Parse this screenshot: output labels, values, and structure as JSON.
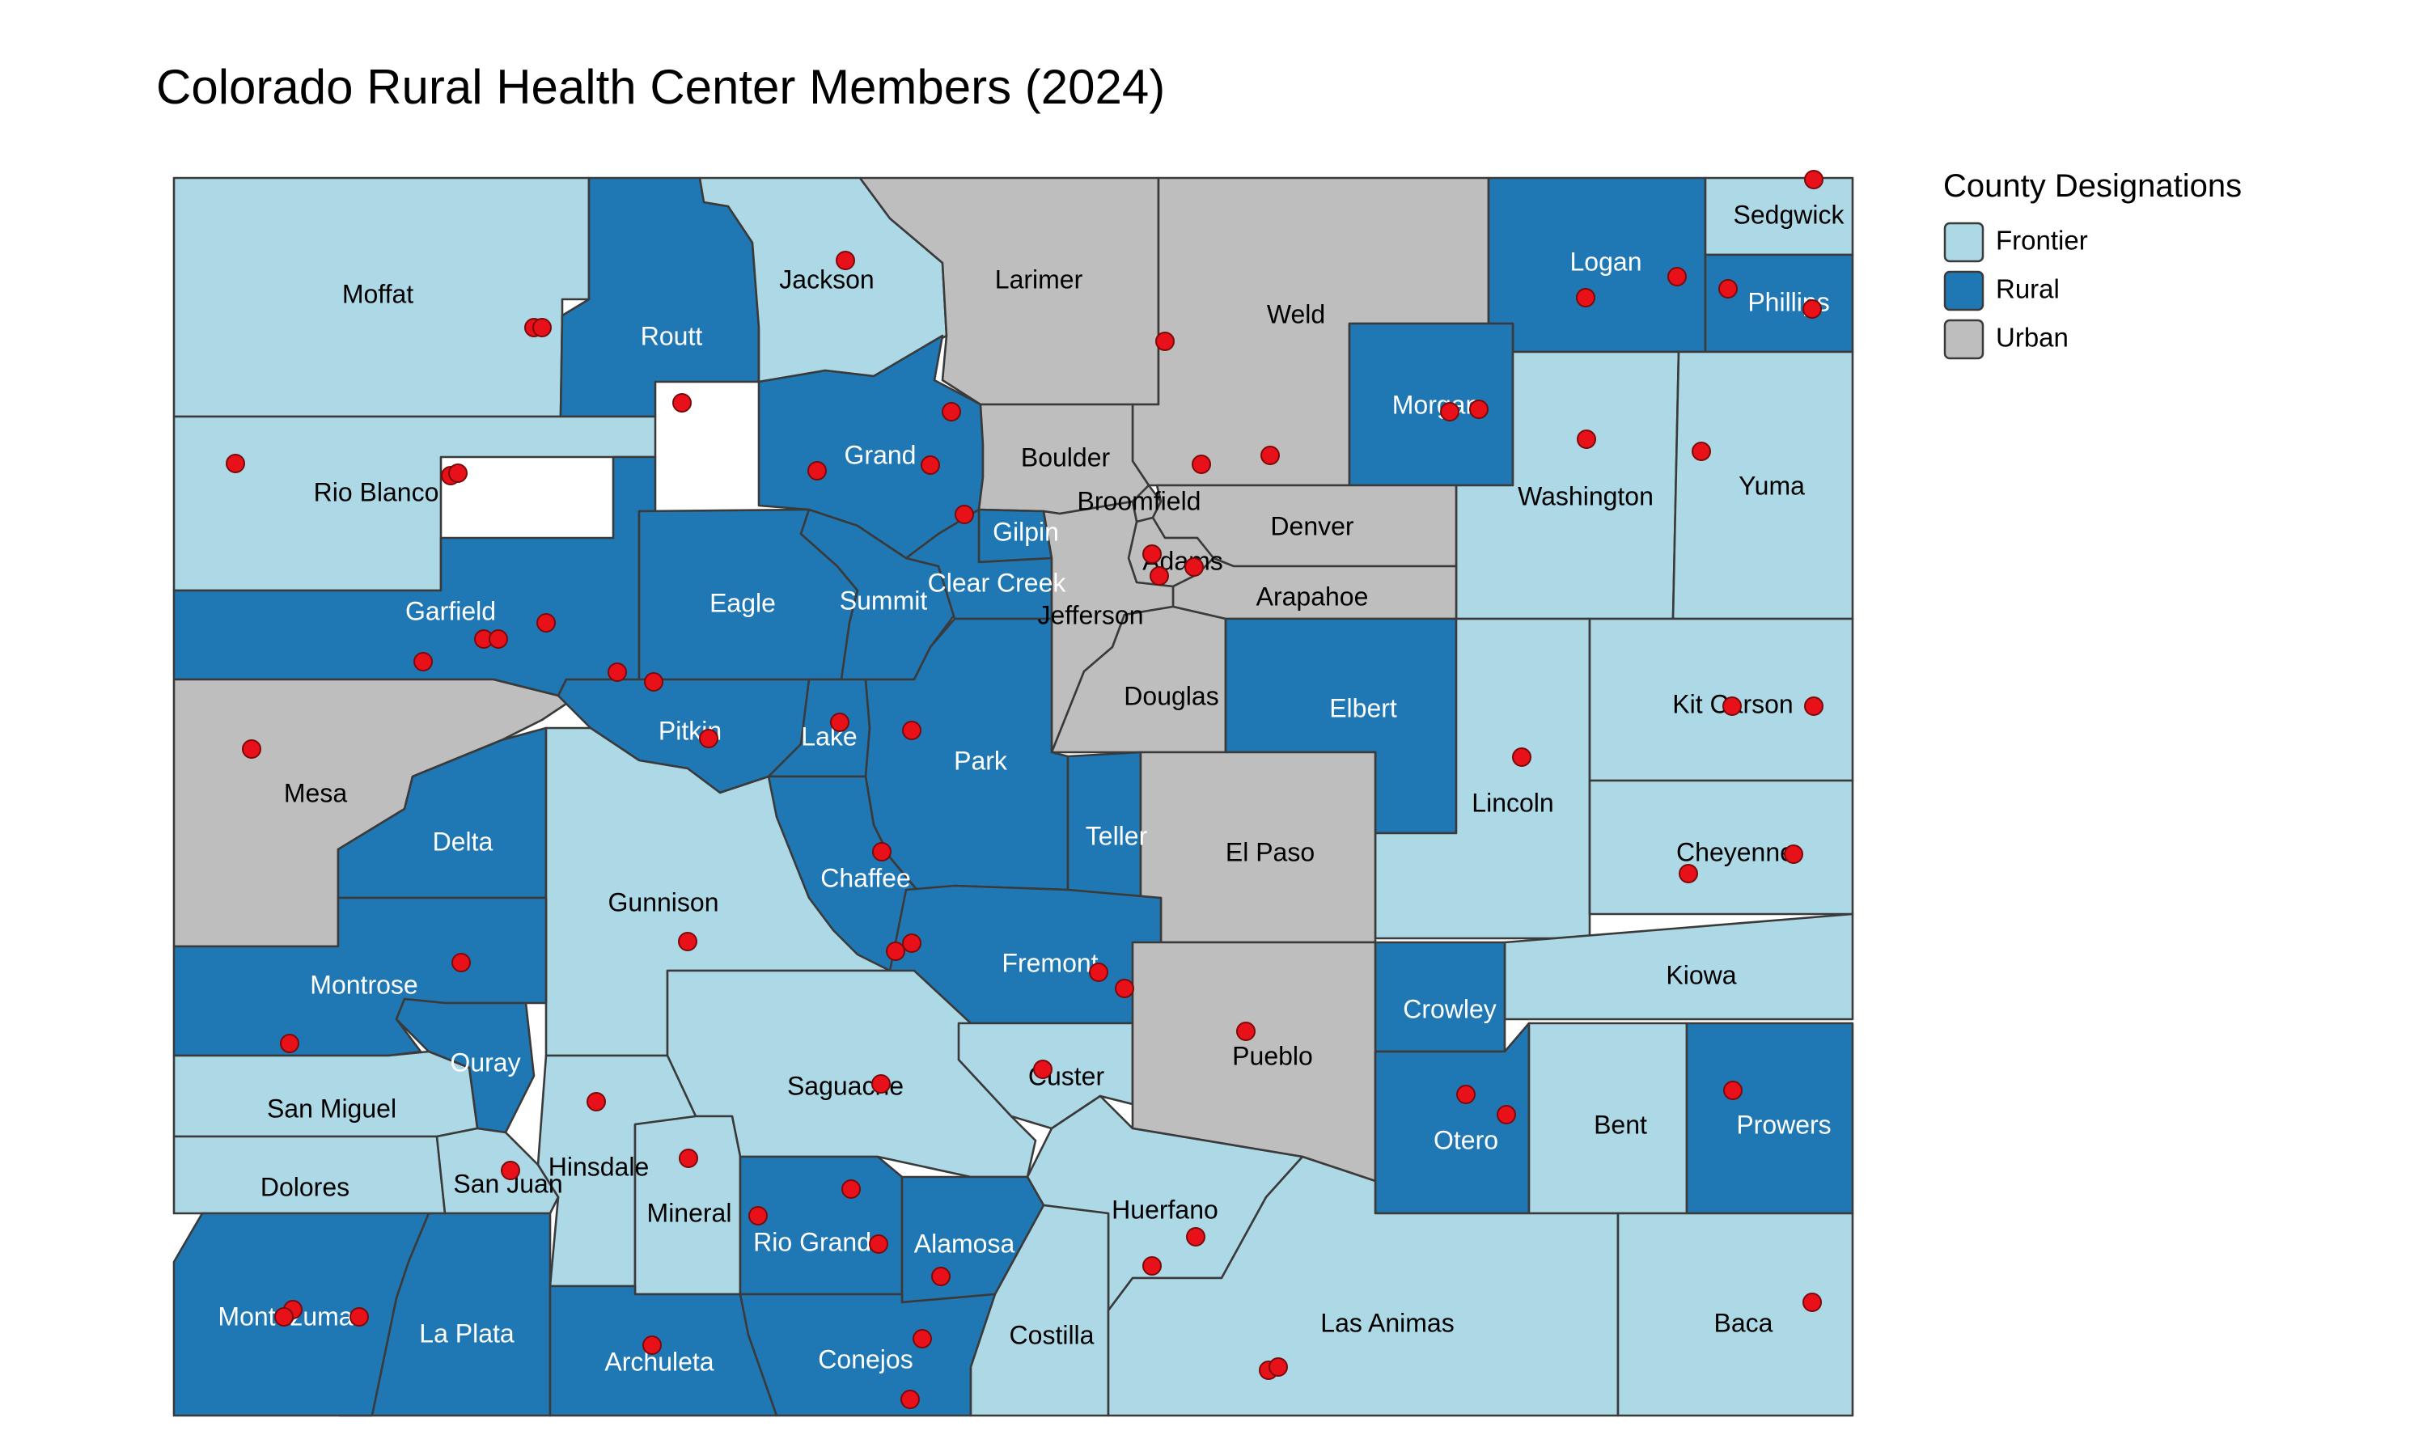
{
  "title": "Colorado Rural Health Center Members (2024)",
  "legend": {
    "title": "County Designations",
    "items": [
      {
        "key": "Frontier",
        "label": "Frontier",
        "color": "#add8e6"
      },
      {
        "key": "Rural",
        "label": "Rural",
        "color": "#1f78b4"
      },
      {
        "key": "Urban",
        "label": "Urban",
        "color": "#bebebe"
      }
    ]
  },
  "colors": {
    "Frontier": "#add8e6",
    "Rural": "#1f78b4",
    "Urban": "#bebebe",
    "point": "#e8111a"
  },
  "counties": [
    {
      "id": "moffat",
      "name": "Moffat",
      "designation": "Frontier"
    },
    {
      "id": "routt",
      "name": "Routt",
      "designation": "Rural"
    },
    {
      "id": "jackson",
      "name": "Jackson",
      "designation": "Frontier"
    },
    {
      "id": "larimer",
      "name": "Larimer",
      "designation": "Urban"
    },
    {
      "id": "weld",
      "name": "Weld",
      "designation": "Urban"
    },
    {
      "id": "logan",
      "name": "Logan",
      "designation": "Rural"
    },
    {
      "id": "sedgwick",
      "name": "Sedgwick",
      "designation": "Frontier"
    },
    {
      "id": "phillips",
      "name": "Phillips",
      "designation": "Rural"
    },
    {
      "id": "rio-blanco",
      "name": "Rio Blanco",
      "designation": "Frontier"
    },
    {
      "id": "grand",
      "name": "Grand",
      "designation": "Rural"
    },
    {
      "id": "boulder",
      "name": "Boulder",
      "designation": "Urban"
    },
    {
      "id": "broomfield",
      "name": "Broomfield",
      "designation": "Urban"
    },
    {
      "id": "morgan",
      "name": "Morgan",
      "designation": "Rural"
    },
    {
      "id": "washington",
      "name": "Washington",
      "designation": "Frontier"
    },
    {
      "id": "yuma",
      "name": "Yuma",
      "designation": "Frontier"
    },
    {
      "id": "garfield",
      "name": "Garfield",
      "designation": "Rural"
    },
    {
      "id": "eagle",
      "name": "Eagle",
      "designation": "Rural"
    },
    {
      "id": "summit",
      "name": "Summit",
      "designation": "Rural"
    },
    {
      "id": "gilpin",
      "name": "Gilpin",
      "designation": "Rural"
    },
    {
      "id": "clear-creek",
      "name": "Clear Creek",
      "designation": "Rural"
    },
    {
      "id": "denver",
      "name": "Denver",
      "designation": "Urban"
    },
    {
      "id": "adams",
      "name": "Adams",
      "designation": "Urban"
    },
    {
      "id": "arapahoe",
      "name": "Arapahoe",
      "designation": "Urban"
    },
    {
      "id": "jefferson",
      "name": "Jefferson",
      "designation": "Urban"
    },
    {
      "id": "mesa",
      "name": "Mesa",
      "designation": "Urban"
    },
    {
      "id": "pitkin",
      "name": "Pitkin",
      "designation": "Rural"
    },
    {
      "id": "lake",
      "name": "Lake",
      "designation": "Rural"
    },
    {
      "id": "park",
      "name": "Park",
      "designation": "Rural"
    },
    {
      "id": "douglas",
      "name": "Douglas",
      "designation": "Urban"
    },
    {
      "id": "elbert",
      "name": "Elbert",
      "designation": "Rural"
    },
    {
      "id": "lincoln",
      "name": "Lincoln",
      "designation": "Frontier"
    },
    {
      "id": "kit-carson",
      "name": "Kit Carson",
      "designation": "Frontier"
    },
    {
      "id": "delta",
      "name": "Delta",
      "designation": "Rural"
    },
    {
      "id": "gunnison",
      "name": "Gunnison",
      "designation": "Frontier"
    },
    {
      "id": "chaffee",
      "name": "Chaffee",
      "designation": "Rural"
    },
    {
      "id": "teller",
      "name": "Teller",
      "designation": "Rural"
    },
    {
      "id": "el-paso",
      "name": "El Paso",
      "designation": "Urban"
    },
    {
      "id": "cheyenne",
      "name": "Cheyenne",
      "designation": "Frontier"
    },
    {
      "id": "montrose",
      "name": "Montrose",
      "designation": "Rural"
    },
    {
      "id": "fremont",
      "name": "Fremont",
      "designation": "Rural"
    },
    {
      "id": "kiowa",
      "name": "Kiowa",
      "designation": "Frontier"
    },
    {
      "id": "ouray",
      "name": "Ouray",
      "designation": "Rural"
    },
    {
      "id": "crowley",
      "name": "Crowley",
      "designation": "Rural"
    },
    {
      "id": "san-miguel",
      "name": "San Miguel",
      "designation": "Frontier"
    },
    {
      "id": "saguache",
      "name": "Saguache",
      "designation": "Frontier"
    },
    {
      "id": "custer",
      "name": "Custer",
      "designation": "Frontier"
    },
    {
      "id": "pueblo",
      "name": "Pueblo",
      "designation": "Urban"
    },
    {
      "id": "otero",
      "name": "Otero",
      "designation": "Rural"
    },
    {
      "id": "bent",
      "name": "Bent",
      "designation": "Frontier"
    },
    {
      "id": "prowers",
      "name": "Prowers",
      "designation": "Rural"
    },
    {
      "id": "hinsdale",
      "name": "Hinsdale",
      "designation": "Frontier"
    },
    {
      "id": "dolores",
      "name": "Dolores",
      "designation": "Frontier"
    },
    {
      "id": "san-juan",
      "name": "San Juan",
      "designation": "Frontier"
    },
    {
      "id": "mineral",
      "name": "Mineral",
      "designation": "Frontier"
    },
    {
      "id": "huerfano",
      "name": "Huerfano",
      "designation": "Frontier"
    },
    {
      "id": "rio-grande",
      "name": "Rio Grande",
      "designation": "Rural"
    },
    {
      "id": "alamosa",
      "name": "Alamosa",
      "designation": "Rural"
    },
    {
      "id": "montezuma",
      "name": "Montezuma",
      "designation": "Rural"
    },
    {
      "id": "la-plata",
      "name": "La Plata",
      "designation": "Rural"
    },
    {
      "id": "archuleta",
      "name": "Archuleta",
      "designation": "Rural"
    },
    {
      "id": "conejos",
      "name": "Conejos",
      "designation": "Rural"
    },
    {
      "id": "costilla",
      "name": "Costilla",
      "designation": "Frontier"
    },
    {
      "id": "las-animas",
      "name": "Las Animas",
      "designation": "Frontier"
    },
    {
      "id": "baca",
      "name": "Baca",
      "designation": "Frontier"
    }
  ]
}
